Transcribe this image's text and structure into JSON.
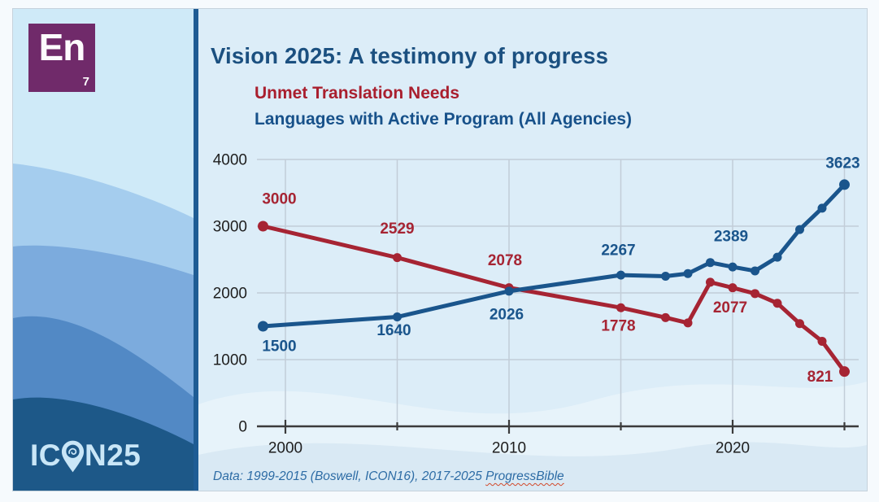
{
  "slide": {
    "element_badge": {
      "symbol": "En",
      "number": "7"
    },
    "title": "Vision 2025: A testimony of progress",
    "legend": [
      {
        "label": "Unmet Translation Needs",
        "color": "#a91f2e"
      },
      {
        "label": "Languages with Active Program (All Agencies)",
        "color": "#17518a"
      }
    ],
    "brand": {
      "part1": "IC",
      "part2": "N25"
    },
    "footnote": {
      "prefix": "Data: 1999-2015 (Boswell, ICON16), 2017-2025 ",
      "highlight": "ProgressBible"
    }
  },
  "colors": {
    "title": "#1b5080",
    "red_series": "#a62433",
    "blue_series": "#1a558c",
    "axis_text": "#1e1e1e",
    "gridline": "#c2cdd8",
    "axis_line": "#3b3b3b",
    "panel_bg": "#dcedf8",
    "divider": "#1e5c94",
    "element_badge_bg": "#702a6a",
    "brand_text": "#c9e6f7",
    "footnote_text": "#2d6ca5"
  },
  "chart_data": {
    "type": "line",
    "title": "Unmet Translation Needs vs Languages with Active Program (All Agencies)",
    "xlabel": "",
    "ylabel": "",
    "ylim": [
      0,
      4000
    ],
    "grid": true,
    "x": [
      1999,
      2005,
      2010,
      2015,
      2017,
      2018,
      2019,
      2020,
      2021,
      2022,
      2023,
      2024,
      2025
    ],
    "series": [
      {
        "name": "Unmet Translation Needs",
        "color": "#a62433",
        "values": [
          3000,
          2529,
          2078,
          1778,
          1630,
          1550,
          2160,
          2077,
          1990,
          1845,
          1540,
          1275,
          821
        ],
        "labels": [
          {
            "year": 1999,
            "text": "3000",
            "dx": 20,
            "dy": -33
          },
          {
            "year": 2005,
            "text": "2529",
            "dx": 0,
            "dy": -35
          },
          {
            "year": 2010,
            "text": "2078",
            "dx": -5,
            "dy": -33
          },
          {
            "year": 2015,
            "text": "1778",
            "dx": -3,
            "dy": 23
          },
          {
            "year": 2020,
            "text": "2077",
            "dx": -3,
            "dy": 25
          },
          {
            "year": 2025,
            "text": "821",
            "dx": -30,
            "dy": 7
          }
        ]
      },
      {
        "name": "Languages with Active Program (All Agencies)",
        "color": "#1a558c",
        "values": [
          1500,
          1640,
          2026,
          2267,
          2250,
          2290,
          2455,
          2389,
          2330,
          2535,
          2950,
          3270,
          3623
        ],
        "labels": [
          {
            "year": 1999,
            "text": "1500",
            "dx": 20,
            "dy": 25
          },
          {
            "year": 2005,
            "text": "1640",
            "dx": -4,
            "dy": 17
          },
          {
            "year": 2010,
            "text": "2026",
            "dx": -3,
            "dy": 29
          },
          {
            "year": 2015,
            "text": "2267",
            "dx": -3,
            "dy": -30
          },
          {
            "year": 2020,
            "text": "2389",
            "dx": -2,
            "dy": -37
          },
          {
            "year": 2025,
            "text": "3623",
            "dx": -2,
            "dy": -26
          }
        ]
      }
    ],
    "y_ticks": [
      0,
      1000,
      2000,
      3000,
      4000
    ],
    "x_gridlines": [
      2000,
      2005,
      2010,
      2015,
      2020,
      2025
    ],
    "x_tick_labels": [
      2000,
      2010,
      2020
    ],
    "legend_position": "as-subtitles-top-left"
  }
}
